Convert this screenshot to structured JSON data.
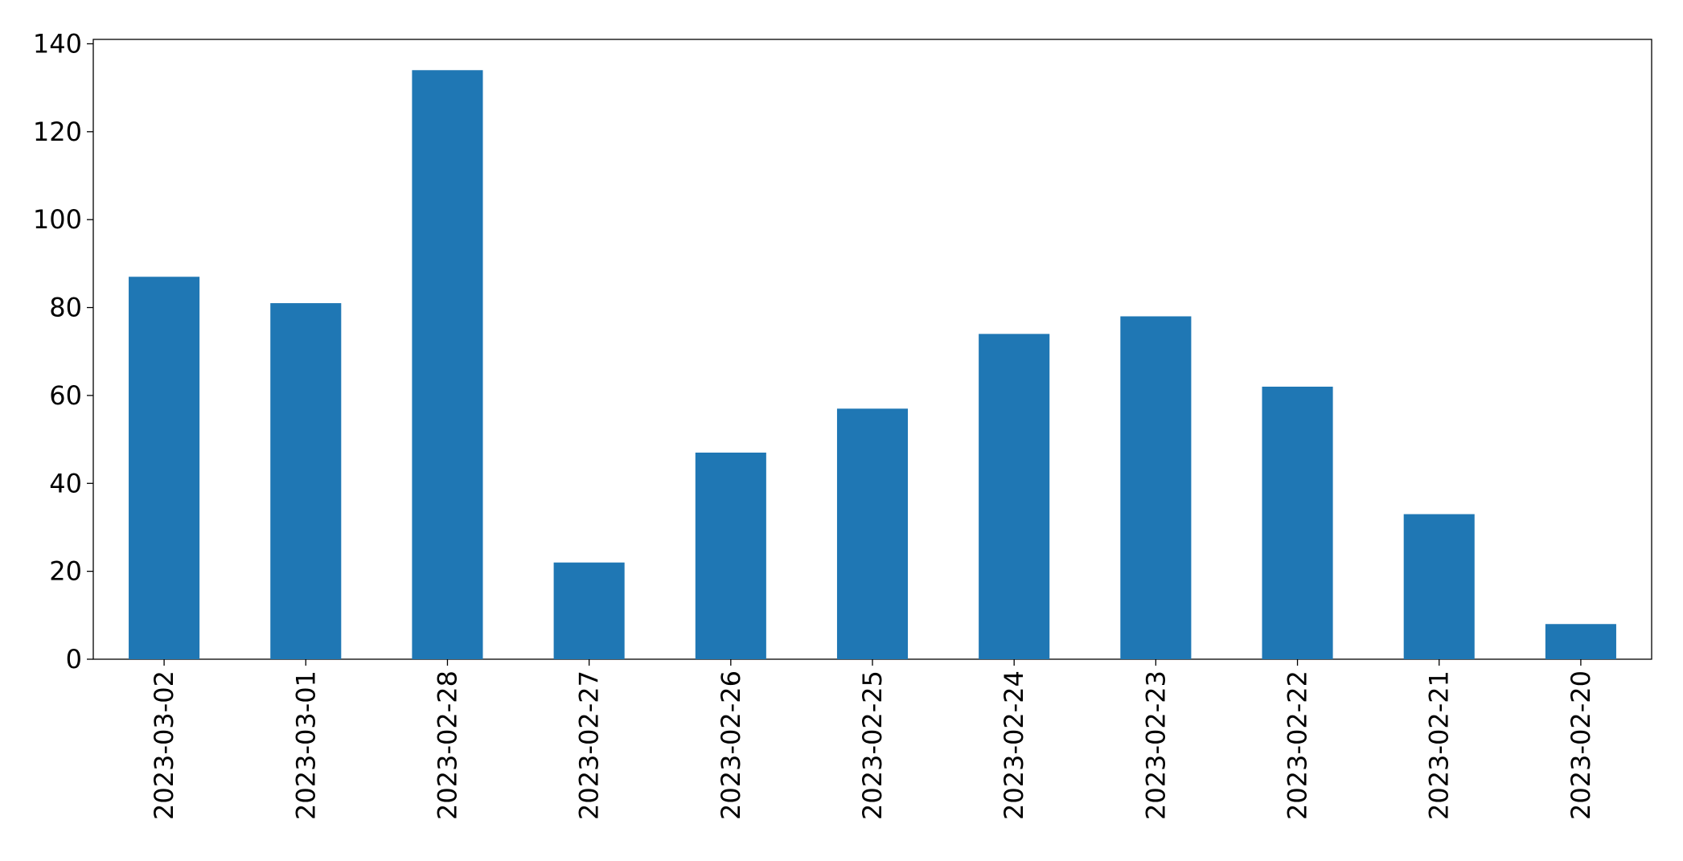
{
  "chart_data": {
    "type": "bar",
    "categories": [
      "2023-03-02",
      "2023-03-01",
      "2023-02-28",
      "2023-02-27",
      "2023-02-26",
      "2023-02-25",
      "2023-02-24",
      "2023-02-23",
      "2023-02-22",
      "2023-02-21",
      "2023-02-20"
    ],
    "values": [
      87,
      81,
      134,
      22,
      47,
      57,
      74,
      78,
      62,
      33,
      8
    ],
    "color": "#1f77b4",
    "ylim": [
      0,
      141
    ],
    "yticks": [
      0,
      20,
      40,
      60,
      80,
      100,
      120,
      140
    ],
    "grid": false
  }
}
